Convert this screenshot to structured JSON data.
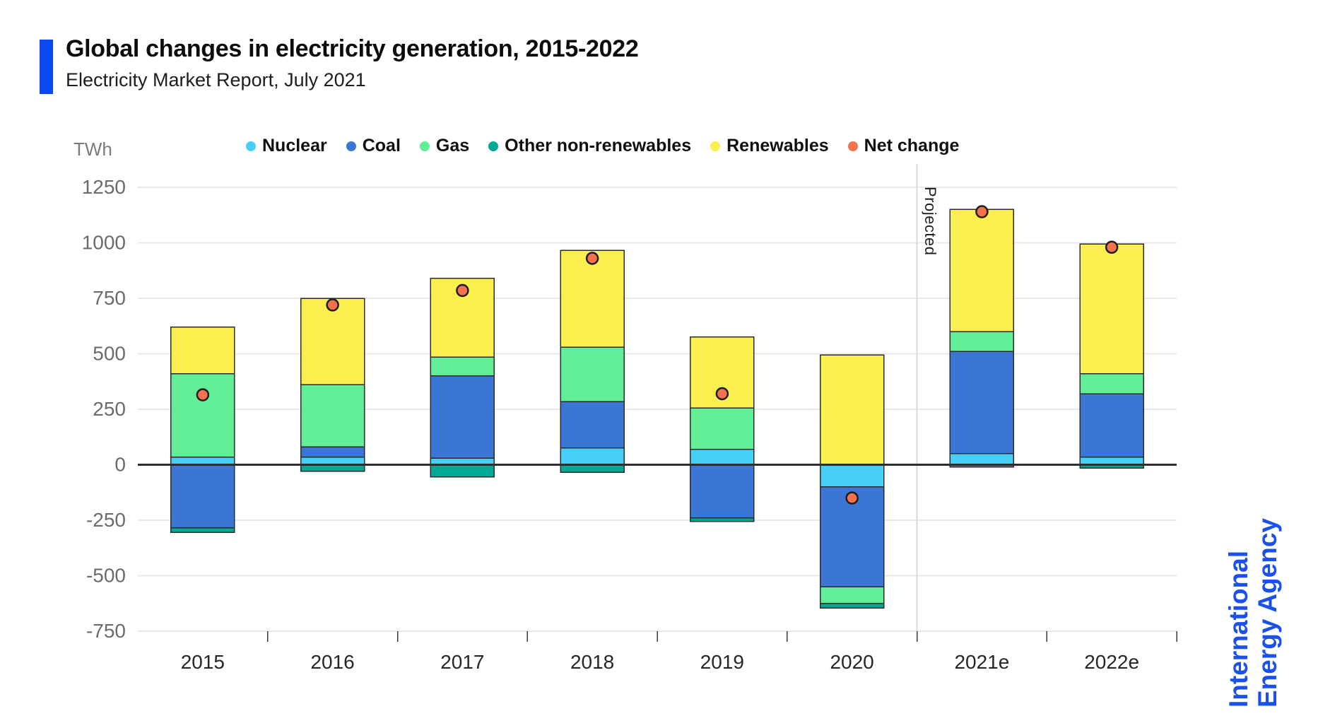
{
  "header": {
    "title": "Global changes in electricity generation, 2015-2022",
    "subtitle": "Electricity Market Report, July 2021"
  },
  "axis": {
    "unit_label": "TWh",
    "y_ticks": [
      1250,
      1000,
      750,
      500,
      250,
      0,
      -250,
      -500,
      -750
    ],
    "categories": [
      "2015",
      "2016",
      "2017",
      "2018",
      "2019",
      "2020",
      "2021e",
      "2022e"
    ]
  },
  "legend": [
    {
      "label": "Nuclear",
      "color": "#47cff5"
    },
    {
      "label": "Coal",
      "color": "#3b76d5"
    },
    {
      "label": "Gas",
      "color": "#62ee96"
    },
    {
      "label": "Other non-renewables",
      "color": "#00a895"
    },
    {
      "label": "Renewables",
      "color": "#fbee4f"
    },
    {
      "label": "Net change",
      "color": "#f3714c"
    }
  ],
  "annotations": {
    "projected_label": "Projected"
  },
  "branding": {
    "line1": "International",
    "line2": "Energy Agency",
    "accent_color": "#0b49f0",
    "logo_color": "#1b51ea"
  },
  "chart_data": {
    "type": "bar",
    "stacked": true,
    "title": "Global changes in electricity generation, 2015-2022",
    "xlabel": "",
    "ylabel": "TWh",
    "ylim": [
      -750,
      1250
    ],
    "y_tick_step": 250,
    "grid": true,
    "legend_position": "top",
    "categories": [
      "2015",
      "2016",
      "2017",
      "2018",
      "2019",
      "2020",
      "2021e",
      "2022e"
    ],
    "series": [
      {
        "name": "Nuclear",
        "color": "#47cff5",
        "values": [
          35,
          35,
          30,
          75,
          70,
          -100,
          50,
          35
        ]
      },
      {
        "name": "Coal",
        "color": "#3b76d5",
        "values": [
          -285,
          45,
          370,
          210,
          -240,
          -450,
          460,
          285
        ]
      },
      {
        "name": "Gas",
        "color": "#62ee96",
        "values": [
          375,
          280,
          85,
          245,
          185,
          -75,
          90,
          90
        ]
      },
      {
        "name": "Other non-renewables",
        "color": "#00a895",
        "values": [
          -20,
          -30,
          -55,
          -35,
          -15,
          -20,
          -10,
          -15
        ]
      },
      {
        "name": "Renewables",
        "color": "#fbee4f",
        "values": [
          210,
          390,
          355,
          435,
          320,
          495,
          550,
          585
        ]
      }
    ],
    "net_change": {
      "name": "Net change",
      "color": "#f3714c",
      "values": [
        315,
        720,
        785,
        930,
        320,
        -150,
        1140,
        980
      ]
    },
    "projected_from": "2021e"
  }
}
